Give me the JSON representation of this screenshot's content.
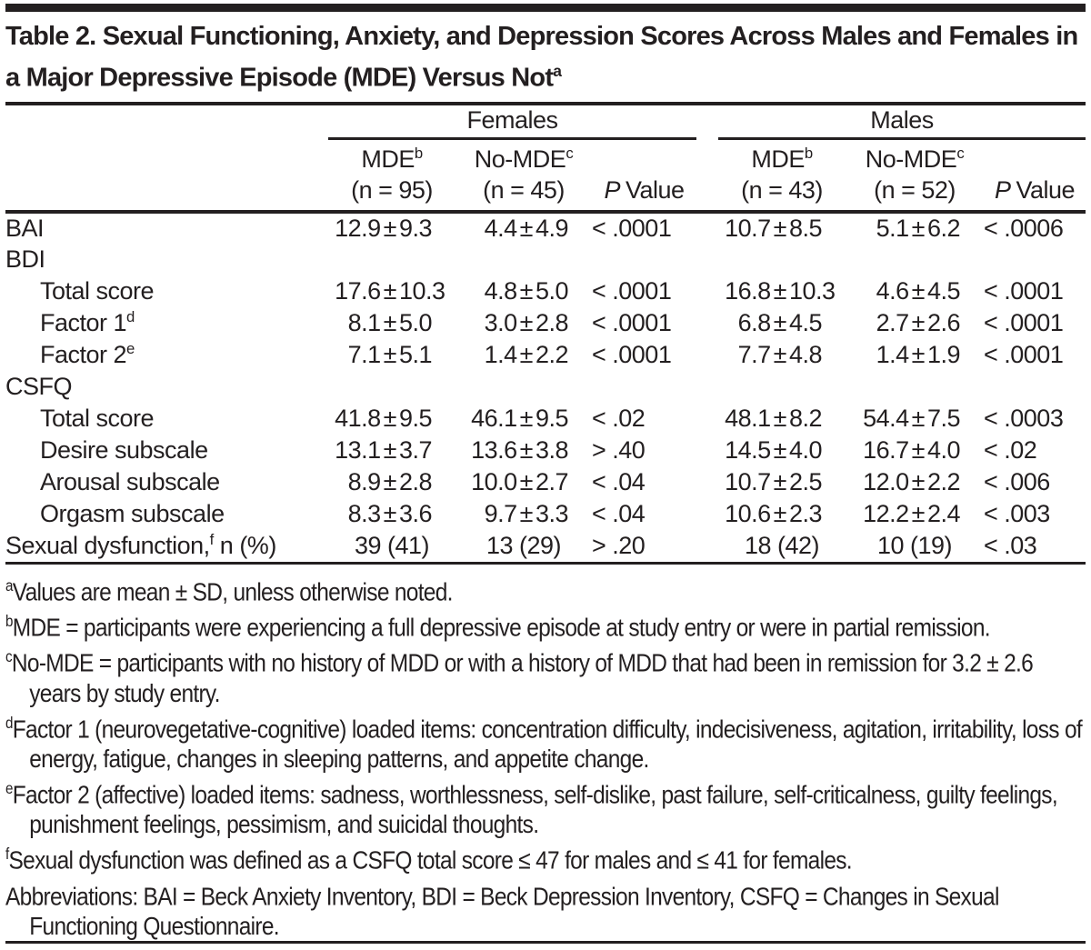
{
  "title": {
    "text": "Table 2. Sexual Functioning, Anxiety, and Depression Scores Across Males and Females in a Major Depressive Episode (MDE) Versus Not",
    "sup": "a"
  },
  "colors": {
    "text": "#231f20",
    "background": "#ffffff",
    "rule": "#231f20"
  },
  "table": {
    "pm": "±",
    "groups": {
      "females": "Females",
      "males": "Males"
    },
    "cols": {
      "f_mde": {
        "text": "MDE",
        "sup": "b",
        "n": "(n = 95)"
      },
      "f_no_mde": {
        "text": "No-MDE",
        "sup": "c",
        "n": "(n = 45)"
      },
      "m_mde": {
        "text": "MDE",
        "sup": "b",
        "n": "(n = 43)"
      },
      "m_no_mde": {
        "text": "No-MDE",
        "sup": "c",
        "n": "(n = 52)"
      },
      "p": {
        "italic": "P",
        "rest": "Value"
      }
    },
    "rows": [
      {
        "label": "BAI",
        "cells": [
          {
            "m": "12.9",
            "s": "9.3"
          },
          {
            "m": "4.4",
            "s": "4.9"
          },
          {
            "p": "< .0001"
          },
          {
            "m": "10.7",
            "s": "8.5"
          },
          {
            "m": "5.1",
            "s": "6.2"
          },
          {
            "p": "< .0006"
          }
        ]
      },
      {
        "label": "BDI",
        "section": true
      },
      {
        "label": "Total score",
        "indent": true,
        "cells": [
          {
            "m": "17.6",
            "s": "10.3"
          },
          {
            "m": "4.8",
            "s": "5.0"
          },
          {
            "p": "< .0001"
          },
          {
            "m": "16.8",
            "s": "10.3"
          },
          {
            "m": "4.6",
            "s": "4.5"
          },
          {
            "p": "< .0001"
          }
        ]
      },
      {
        "label": "Factor 1",
        "sup": "d",
        "indent": true,
        "cells": [
          {
            "m": "8.1",
            "s": "5.0"
          },
          {
            "m": "3.0",
            "s": "2.8"
          },
          {
            "p": "< .0001"
          },
          {
            "m": "6.8",
            "s": "4.5"
          },
          {
            "m": "2.7",
            "s": "2.6"
          },
          {
            "p": "< .0001"
          }
        ]
      },
      {
        "label": "Factor 2",
        "sup": "e",
        "indent": true,
        "cells": [
          {
            "m": "7.1",
            "s": "5.1"
          },
          {
            "m": "1.4",
            "s": "2.2"
          },
          {
            "p": "< .0001"
          },
          {
            "m": "7.7",
            "s": "4.8"
          },
          {
            "m": "1.4",
            "s": "1.9"
          },
          {
            "p": "< .0001"
          }
        ]
      },
      {
        "label": "CSFQ",
        "section": true
      },
      {
        "label": "Total score",
        "indent": true,
        "cells": [
          {
            "m": "41.8",
            "s": "9.5"
          },
          {
            "m": "46.1",
            "s": "9.5"
          },
          {
            "p": "< .02"
          },
          {
            "m": "48.1",
            "s": "8.2"
          },
          {
            "m": "54.4",
            "s": "7.5"
          },
          {
            "p": "< .0003"
          }
        ]
      },
      {
        "label": "Desire subscale",
        "indent": true,
        "cells": [
          {
            "m": "13.1",
            "s": "3.7"
          },
          {
            "m": "13.6",
            "s": "3.8"
          },
          {
            "p": "> .40"
          },
          {
            "m": "14.5",
            "s": "4.0"
          },
          {
            "m": "16.7",
            "s": "4.0"
          },
          {
            "p": "< .02"
          }
        ]
      },
      {
        "label": "Arousal subscale",
        "indent": true,
        "cells": [
          {
            "m": "8.9",
            "s": "2.8"
          },
          {
            "m": "10.0",
            "s": "2.7"
          },
          {
            "p": "< .04"
          },
          {
            "m": "10.7",
            "s": "2.5"
          },
          {
            "m": "12.0",
            "s": "2.2"
          },
          {
            "p": "< .006"
          }
        ]
      },
      {
        "label": "Orgasm subscale",
        "indent": true,
        "cells": [
          {
            "m": "8.3",
            "s": "3.6"
          },
          {
            "m": "9.7",
            "s": "3.3"
          },
          {
            "p": "< .04"
          },
          {
            "m": "10.6",
            "s": "2.3"
          },
          {
            "m": "12.2",
            "s": "2.4"
          },
          {
            "p": "< .003"
          }
        ]
      },
      {
        "label": "Sexual dysfunction,",
        "sup": "f",
        "label_after": " n (%)",
        "cells": [
          {
            "t": "39 (41)"
          },
          {
            "t": "13 (29)"
          },
          {
            "p": "> .20"
          },
          {
            "t": "18 (42)"
          },
          {
            "t": "10 (19)"
          },
          {
            "p": "< .03"
          }
        ]
      }
    ]
  },
  "footnotes": [
    {
      "sup": "a",
      "text": "Values are mean ± SD, unless otherwise noted."
    },
    {
      "sup": "b",
      "text": "MDE = participants were experiencing a full depressive episode at study entry or were in partial remission."
    },
    {
      "sup": "c",
      "text": "No-MDE = participants with no history of MDD or with a history of MDD that had been in remission for 3.2 ± 2.6 years by study entry."
    },
    {
      "sup": "d",
      "text": "Factor 1 (neurovegetative-cognitive) loaded items: concentration difficulty, indecisiveness, agitation, irritability, loss of energy, fatigue, changes in sleeping patterns, and appetite change."
    },
    {
      "sup": "e",
      "text": "Factor 2 (affective) loaded items: sadness, worthlessness, self-dislike, past failure, self-criticalness, guilty feelings, punishment feelings, pessimism, and suicidal thoughts."
    },
    {
      "sup": "f",
      "text": "Sexual dysfunction was defined as a CSFQ total score ≤ 47 for males and ≤ 41 for females."
    },
    {
      "sup": "",
      "text": "Abbreviations: BAI = Beck Anxiety Inventory, BDI = Beck Depression Inventory, CSFQ = Changes in Sexual Functioning Questionnaire."
    }
  ]
}
